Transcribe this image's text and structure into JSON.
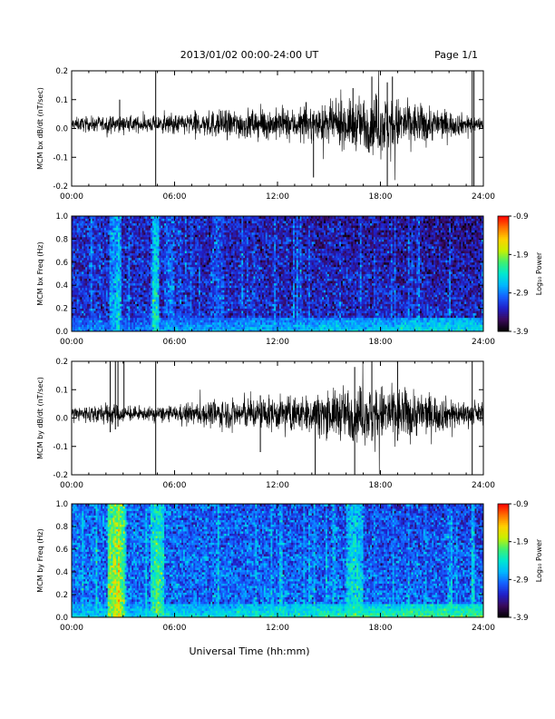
{
  "header": {
    "title": "2013/01/02  00:00-24:00 UT",
    "page": "Page 1/1"
  },
  "footer": {
    "xlabel": "Universal Time (hh:mm)"
  },
  "colors": {
    "trace": "#000000",
    "colormap": [
      "#000000",
      "#3a0a5a",
      "#2020c8",
      "#1560ff",
      "#00b8ff",
      "#00e8d0",
      "#40f070",
      "#c8f000",
      "#ffd000",
      "#ff7000",
      "#ff0000"
    ]
  },
  "chart_data": [
    {
      "id": "bx-dbdt",
      "type": "line",
      "ylabel": "MCM bx dB/dt (nT/sec)",
      "xlim": [
        0,
        24
      ],
      "ylim": [
        -0.2,
        0.2
      ],
      "x_ticks": [
        "00:00",
        "06:00",
        "12:00",
        "18:00",
        "24:00"
      ],
      "y_ticks": [
        "-0.2",
        "-0.1",
        "0.0",
        "0.1",
        "0.2"
      ],
      "baseline": 0.015,
      "envelope": [
        {
          "t": 0,
          "amp": 0.012
        },
        {
          "t": 2,
          "amp": 0.015
        },
        {
          "t": 4,
          "amp": 0.014
        },
        {
          "t": 6,
          "amp": 0.018
        },
        {
          "t": 8,
          "amp": 0.025
        },
        {
          "t": 10,
          "amp": 0.028
        },
        {
          "t": 12,
          "amp": 0.028
        },
        {
          "t": 14,
          "amp": 0.03
        },
        {
          "t": 16,
          "amp": 0.042
        },
        {
          "t": 18,
          "amp": 0.058
        },
        {
          "t": 20,
          "amp": 0.04
        },
        {
          "t": 22,
          "amp": 0.025
        },
        {
          "t": 24,
          "amp": 0.012
        }
      ],
      "spikes": [
        {
          "t": 4.9,
          "lo": -0.2,
          "hi": 0.2
        },
        {
          "t": 2.8,
          "lo": 0.0,
          "hi": 0.1
        },
        {
          "t": 14.1,
          "lo": -0.17,
          "hi": 0.05
        },
        {
          "t": 16.4,
          "lo": -0.05,
          "hi": 0.14
        },
        {
          "t": 17.5,
          "lo": -0.06,
          "hi": 0.18
        },
        {
          "t": 18.4,
          "lo": -0.2,
          "hi": 0.16
        },
        {
          "t": 18.7,
          "lo": -0.05,
          "hi": 0.18
        },
        {
          "t": 23.35,
          "lo": -0.2,
          "hi": 0.2
        },
        {
          "t": 23.45,
          "lo": -0.2,
          "hi": 0.2
        }
      ]
    },
    {
      "id": "bx-spec",
      "type": "heatmap",
      "ylabel": "MCM bx Freq (Hz)",
      "xlim": [
        0,
        24
      ],
      "ylim": [
        0,
        1.0
      ],
      "x_ticks": [
        "00:00",
        "06:00",
        "12:00",
        "18:00",
        "24:00"
      ],
      "y_ticks": [
        "0.0",
        "0.2",
        "0.4",
        "0.6",
        "0.8",
        "1.0"
      ],
      "colorbar": {
        "label": "Log₁₀ Power",
        "range": [
          -3.9,
          -0.9
        ],
        "ticks": [
          "-0.9",
          "-1.9",
          "-2.9",
          "-3.9"
        ]
      },
      "background": -3.25,
      "bright_bands": [
        {
          "t": 2.4,
          "w": 0.25,
          "level": -2.7
        },
        {
          "t": 2.7,
          "w": 0.2,
          "level": -2.5
        },
        {
          "t": 4.9,
          "w": 0.25,
          "level": -2.3
        },
        {
          "t": 5.7,
          "w": 0.3,
          "level": -2.9
        },
        {
          "t": 8.5,
          "w": 0.4,
          "level": -3.0
        }
      ],
      "low_freq_trend": [
        -3.2,
        -3.1,
        -3.0,
        -2.9,
        -2.8
      ]
    },
    {
      "id": "by-dbdt",
      "type": "line",
      "ylabel": "MCM by dB/dt (nT/sec)",
      "xlim": [
        0,
        24
      ],
      "ylim": [
        -0.2,
        0.2
      ],
      "x_ticks": [
        "00:00",
        "06:00",
        "12:00",
        "18:00",
        "24:00"
      ],
      "y_ticks": [
        "-0.2",
        "-0.1",
        "0.0",
        "0.1",
        "0.2"
      ],
      "baseline": 0.015,
      "envelope": [
        {
          "t": 0,
          "amp": 0.015
        },
        {
          "t": 2,
          "amp": 0.02
        },
        {
          "t": 4,
          "amp": 0.012
        },
        {
          "t": 6,
          "amp": 0.015
        },
        {
          "t": 8,
          "amp": 0.025
        },
        {
          "t": 10,
          "amp": 0.03
        },
        {
          "t": 12,
          "amp": 0.032
        },
        {
          "t": 14,
          "amp": 0.035
        },
        {
          "t": 16,
          "amp": 0.05
        },
        {
          "t": 18,
          "amp": 0.055
        },
        {
          "t": 20,
          "amp": 0.045
        },
        {
          "t": 22,
          "amp": 0.03
        },
        {
          "t": 24,
          "amp": 0.018
        }
      ],
      "spikes": [
        {
          "t": 2.25,
          "lo": -0.05,
          "hi": 0.2
        },
        {
          "t": 2.55,
          "lo": -0.04,
          "hi": 0.2
        },
        {
          "t": 2.7,
          "lo": -0.03,
          "hi": 0.2
        },
        {
          "t": 3.05,
          "lo": 0.0,
          "hi": 0.2
        },
        {
          "t": 4.9,
          "lo": -0.2,
          "hi": 0.2
        },
        {
          "t": 11.0,
          "lo": -0.12,
          "hi": 0.08
        },
        {
          "t": 14.2,
          "lo": -0.2,
          "hi": 0.06
        },
        {
          "t": 16.5,
          "lo": -0.2,
          "hi": 0.18
        },
        {
          "t": 17.5,
          "lo": -0.08,
          "hi": 0.2
        },
        {
          "t": 19.0,
          "lo": -0.08,
          "hi": 0.2
        },
        {
          "t": 23.35,
          "lo": -0.2,
          "hi": 0.2
        }
      ]
    },
    {
      "id": "by-spec",
      "type": "heatmap",
      "ylabel": "MCM by Freq (Hz)",
      "xlim": [
        0,
        24
      ],
      "ylim": [
        0,
        1.0
      ],
      "x_ticks": [
        "00:00",
        "06:00",
        "12:00",
        "18:00",
        "24:00"
      ],
      "y_ticks": [
        "0.0",
        "0.2",
        "0.4",
        "0.6",
        "0.8",
        "1.0"
      ],
      "colorbar": {
        "label": "Log₁₀ Power",
        "range": [
          -3.9,
          -0.9
        ],
        "ticks": [
          "-0.9",
          "-1.9",
          "-2.9",
          "-3.9"
        ]
      },
      "background": -2.95,
      "bright_bands": [
        {
          "t": 2.25,
          "w": 0.15,
          "level": -1.8
        },
        {
          "t": 2.5,
          "w": 0.15,
          "level": -1.6
        },
        {
          "t": 2.75,
          "w": 0.15,
          "level": -1.5
        },
        {
          "t": 3.0,
          "w": 0.12,
          "level": -1.9
        },
        {
          "t": 5.0,
          "w": 0.35,
          "level": -2.1
        },
        {
          "t": 16.5,
          "w": 0.5,
          "level": -2.3
        },
        {
          "t": 23.4,
          "w": 0.1,
          "level": -2.3
        }
      ],
      "low_freq_trend": [
        -2.9,
        -2.8,
        -2.7,
        -2.6,
        -2.5
      ]
    }
  ]
}
